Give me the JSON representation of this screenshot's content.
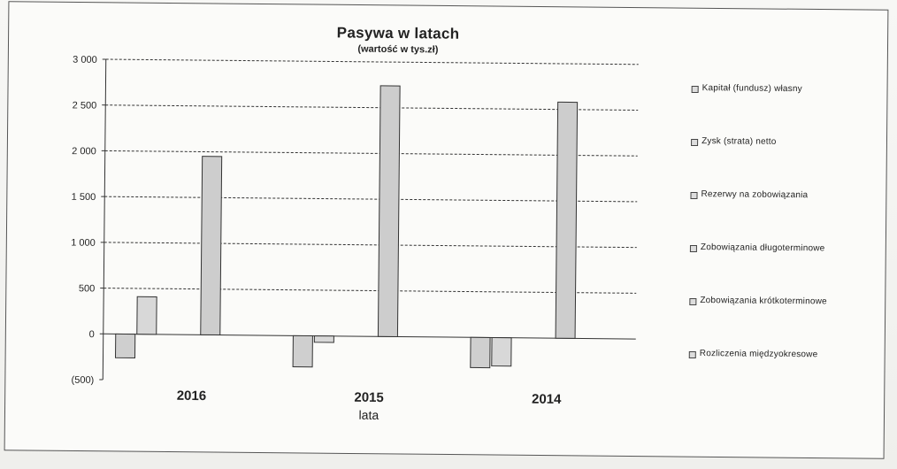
{
  "chart_data": {
    "type": "bar",
    "title": "Pasywa w latach",
    "subtitle": "(wartość w tys.zł)",
    "xlabel": "lata",
    "ylabel": "",
    "categories": [
      "2016",
      "2015",
      "2014"
    ],
    "ylim": [
      -500,
      3000
    ],
    "yticks": [
      3000,
      2500,
      2000,
      1500,
      1000,
      500,
      0,
      -500
    ],
    "ytick_labels": [
      "3 000",
      "2 500",
      "2 000",
      "1 500",
      "1 000",
      "500",
      "0",
      "(500)"
    ],
    "grid": true,
    "legend_position": "right",
    "series": [
      {
        "name": "Kapitał (fundusz) własny",
        "values": [
          -260,
          -340,
          -330
        ]
      },
      {
        "name": "Zysk (strata) netto",
        "values": [
          410,
          -70,
          -310
        ]
      },
      {
        "name": "Rezerwy na zobowiązania",
        "values": [
          0,
          0,
          0
        ]
      },
      {
        "name": "Zobowiązania długoterminowe",
        "values": [
          0,
          0,
          0
        ]
      },
      {
        "name": "Zobowiązania krótkoterminowe",
        "values": [
          1950,
          2740,
          2580
        ]
      },
      {
        "name": "Rozliczenia międzyokresowe",
        "values": [
          0,
          0,
          0
        ]
      }
    ]
  }
}
